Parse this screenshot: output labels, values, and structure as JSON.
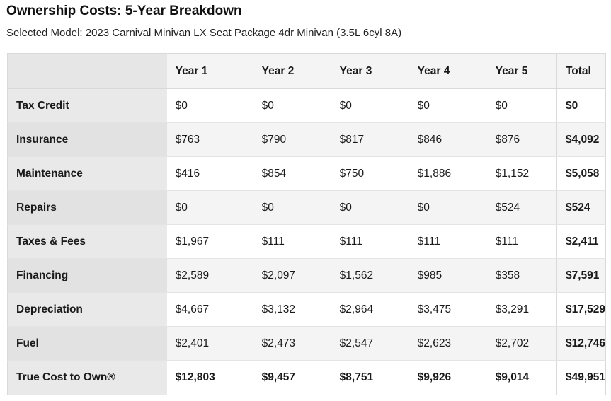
{
  "page": {
    "title": "Ownership Costs: 5-Year Breakdown",
    "subtitle": "Selected Model: 2023 Carnival Minivan LX Seat Package 4dr Minivan (3.5L 6cyl 8A)"
  },
  "table": {
    "headers": [
      "Year 1",
      "Year 2",
      "Year 3",
      "Year 4",
      "Year 5",
      "Total"
    ],
    "rows": [
      {
        "label": "Tax Credit",
        "values": [
          "$0",
          "$0",
          "$0",
          "$0",
          "$0"
        ],
        "total": "$0"
      },
      {
        "label": "Insurance",
        "values": [
          "$763",
          "$790",
          "$817",
          "$846",
          "$876"
        ],
        "total": "$4,092"
      },
      {
        "label": "Maintenance",
        "values": [
          "$416",
          "$854",
          "$750",
          "$1,886",
          "$1,152"
        ],
        "total": "$5,058"
      },
      {
        "label": "Repairs",
        "values": [
          "$0",
          "$0",
          "$0",
          "$0",
          "$524"
        ],
        "total": "$524"
      },
      {
        "label": "Taxes & Fees",
        "values": [
          "$1,967",
          "$111",
          "$111",
          "$111",
          "$111"
        ],
        "total": "$2,411"
      },
      {
        "label": "Financing",
        "values": [
          "$2,589",
          "$2,097",
          "$1,562",
          "$985",
          "$358"
        ],
        "total": "$7,591"
      },
      {
        "label": "Depreciation",
        "values": [
          "$4,667",
          "$3,132",
          "$2,964",
          "$3,475",
          "$3,291"
        ],
        "total": "$17,529"
      },
      {
        "label": "Fuel",
        "values": [
          "$2,401",
          "$2,473",
          "$2,547",
          "$2,623",
          "$2,702"
        ],
        "total": "$12,746"
      },
      {
        "label": "True Cost to Own®",
        "values": [
          "$12,803",
          "$9,457",
          "$8,751",
          "$9,926",
          "$9,014"
        ],
        "total": "$49,951"
      }
    ]
  }
}
